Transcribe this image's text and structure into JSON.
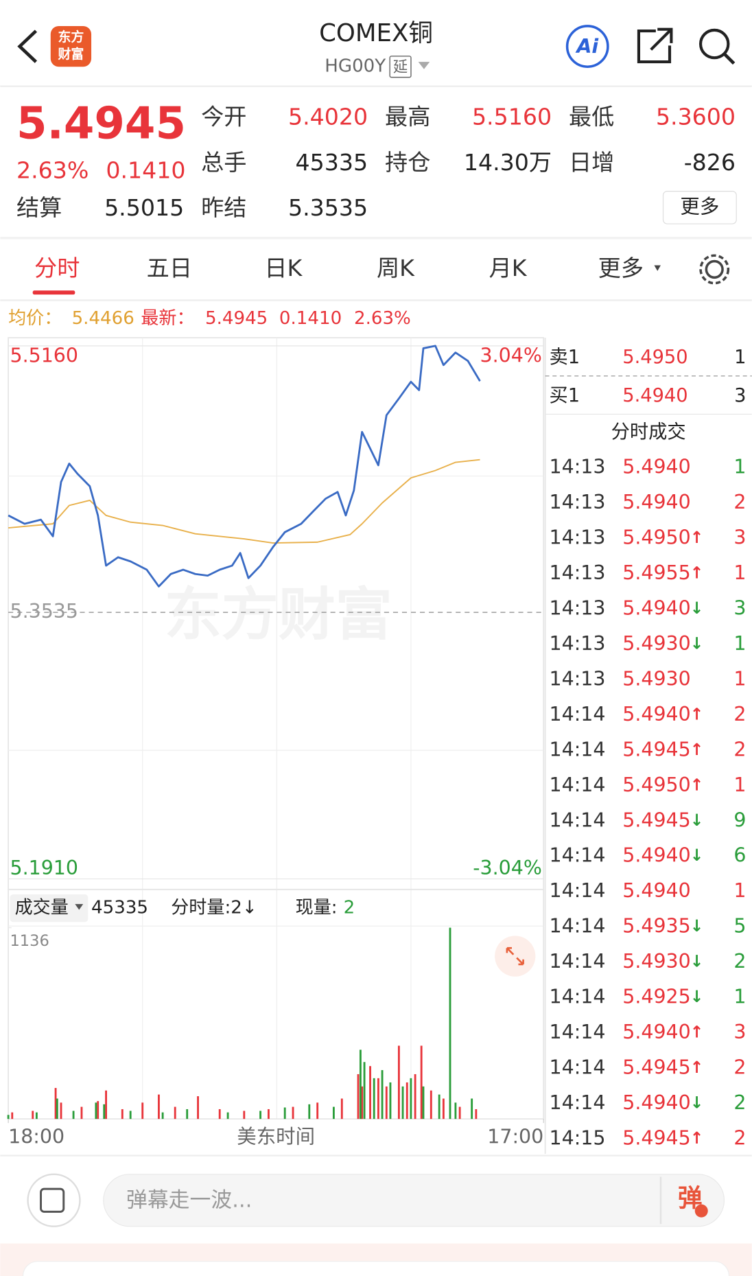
{
  "header": {
    "logo": "东方",
    "logo2": "财富",
    "title": "COMEX铜",
    "code": "HG00Y",
    "badge": "延",
    "ai": "Ai"
  },
  "quote": {
    "price": "5.4945",
    "change_pct": "2.63%",
    "change": "0.1410",
    "fields": [
      {
        "label": "今开",
        "value": "5.4020",
        "color": "#e8343a"
      },
      {
        "label": "最高",
        "value": "5.5160",
        "color": "#e8343a"
      },
      {
        "label": "最低",
        "value": "5.3600",
        "color": "#e8343a"
      },
      {
        "label": "总手",
        "value": "45335",
        "color": "#222222"
      },
      {
        "label": "持仓",
        "value": "14.30万",
        "color": "#222222"
      },
      {
        "label": "日增",
        "value": "-826",
        "color": "#222222"
      },
      {
        "label": "结算",
        "value": "5.5015",
        "color": "#222222"
      },
      {
        "label": "昨结",
        "value": "5.3535",
        "color": "#222222"
      }
    ],
    "more": "更多"
  },
  "tabs": [
    "分时",
    "五日",
    "日K",
    "周K",
    "月K",
    "更多"
  ],
  "legend": {
    "avg_label": "均价：",
    "avg": "5.4466",
    "latest_label": "最新：",
    "latest": "5.4945",
    "change": "0.1410",
    "change_pct": "2.63%"
  },
  "watermark": "东方财富",
  "chart_data": [
    {
      "type": "line",
      "xlim": [
        0,
        1380
      ],
      "xticks": [
        {
          "value": 0,
          "label": "18:00"
        },
        {
          "value": 1380,
          "label": "17:00"
        }
      ],
      "x_label": "美东时间",
      "ylim": [
        5.191,
        5.516
      ],
      "yticks": [
        {
          "value": 5.516,
          "label": "5.5160"
        },
        {
          "value": 5.3535,
          "label": "5.3535"
        },
        {
          "value": 5.191,
          "label": "5.1910"
        }
      ],
      "y2lim": [
        -3.04,
        3.04
      ],
      "y2ticks": [
        {
          "value": 3.04,
          "label": "3.04%"
        },
        {
          "value": -3.04,
          "label": "-3.04%"
        }
      ],
      "series": [
        {
          "color": "#3a6bc4",
          "x": [
            0,
            42,
            84,
            115,
            136,
            157,
            178,
            210,
            231,
            252,
            283,
            315,
            357,
            388,
            419,
            451,
            482,
            514,
            545,
            577,
            598,
            619,
            650,
            682,
            713,
            755,
            786,
            818,
            849,
            870,
            891,
            912,
            933,
            954,
            975,
            1007,
            1038,
            1059,
            1070,
            1101,
            1122,
            1153,
            1185,
            1216
          ],
          "values": [
            5.4126,
            5.4075,
            5.41,
            5.3999,
            5.433,
            5.4442,
            5.4381,
            5.4304,
            5.4126,
            5.382,
            5.3871,
            5.3846,
            5.3795,
            5.3693,
            5.3769,
            5.3795,
            5.3769,
            5.3759,
            5.3795,
            5.382,
            5.3897,
            5.3744,
            5.382,
            5.3932,
            5.4024,
            5.4075,
            5.4151,
            5.4228,
            5.4269,
            5.4126,
            5.4279,
            5.4635,
            5.4534,
            5.4432,
            5.4737,
            5.4839,
            5.4941,
            5.489,
            5.5145,
            5.516,
            5.5043,
            5.5119,
            5.5068,
            5.4945
          ]
        },
        {
          "color": "#e8b04a",
          "x": [
            0,
            115,
            157,
            210,
            252,
            315,
            398,
            482,
            608,
            682,
            797,
            881,
            912,
            964,
            1038,
            1101,
            1153,
            1216
          ],
          "values": [
            5.405,
            5.4075,
            5.4187,
            5.4218,
            5.4126,
            5.4085,
            5.4065,
            5.4014,
            5.3983,
            5.3958,
            5.3963,
            5.4009,
            5.4075,
            5.4202,
            5.4355,
            5.44,
            5.445,
            5.4466
          ]
        }
      ]
    },
    {
      "type": "bar",
      "label": "成交量",
      "total": "45335",
      "minute_label": "分时量:2↓",
      "current_label": "现量:",
      "current": "2",
      "xlim": [
        0,
        1380
      ],
      "ylim": [
        0,
        1136
      ],
      "yticks": [
        1136
      ],
      "series": [
        {
          "color": "#e8343a",
          "x": [
            10,
            63,
            122,
            136,
            189,
            231,
            252,
            294,
            346,
            388,
            430,
            489,
            545,
            608,
            671,
            734,
            797,
            860,
            902,
            912,
            933,
            954,
            975,
            1007,
            1028,
            1049,
            1065,
            1090,
            1122,
            1164,
            1206
          ],
          "values": [
            39,
            48,
            184,
            97,
            72,
            106,
            169,
            58,
            97,
            145,
            72,
            135,
            58,
            48,
            58,
            72,
            97,
            121,
            266,
            193,
            314,
            242,
            193,
            435,
            217,
            266,
            435,
            169,
            121,
            72,
            58
          ]
        },
        {
          "color": "#2a9d3a",
          "x": [
            0,
            73,
            126,
            168,
            226,
            247,
            315,
            398,
            461,
            566,
            650,
            713,
            776,
            839,
            908,
            918,
            943,
            964,
            985,
            1017,
            1038,
            1070,
            1111,
            1139,
            1153,
            1195
          ],
          "values": [
            24,
            39,
            121,
            48,
            97,
            87,
            48,
            39,
            58,
            39,
            48,
            68,
            87,
            72,
            411,
            338,
            242,
            290,
            217,
            193,
            242,
            193,
            145,
            1136,
            97,
            121
          ]
        }
      ]
    }
  ],
  "book": {
    "sell": {
      "label": "卖1",
      "price": "5.4950",
      "vol": "1"
    },
    "buy": {
      "label": "买1",
      "price": "5.4940",
      "vol": "3"
    },
    "title": "分时成交",
    "rows": [
      {
        "time": "14:13",
        "price": "5.4940",
        "vol": "1",
        "vol_color": "#2a9d3a"
      },
      {
        "time": "14:13",
        "price": "5.4940",
        "vol": "2",
        "vol_color": "#e8343a"
      },
      {
        "time": "14:13",
        "price": "5.4950",
        "arrow": "↑",
        "vol": "3",
        "vol_color": "#e8343a"
      },
      {
        "time": "14:13",
        "price": "5.4955",
        "arrow": "↑",
        "vol": "1",
        "vol_color": "#e8343a"
      },
      {
        "time": "14:13",
        "price": "5.4940",
        "arrow": "↓",
        "vol": "3",
        "vol_color": "#2a9d3a"
      },
      {
        "time": "14:13",
        "price": "5.4930",
        "arrow": "↓",
        "vol": "1",
        "vol_color": "#2a9d3a"
      },
      {
        "time": "14:13",
        "price": "5.4930",
        "vol": "1",
        "vol_color": "#e8343a"
      },
      {
        "time": "14:14",
        "price": "5.4940",
        "arrow": "↑",
        "vol": "2",
        "vol_color": "#e8343a"
      },
      {
        "time": "14:14",
        "price": "5.4945",
        "arrow": "↑",
        "vol": "2",
        "vol_color": "#e8343a"
      },
      {
        "time": "14:14",
        "price": "5.4950",
        "arrow": "↑",
        "vol": "1",
        "vol_color": "#e8343a"
      },
      {
        "time": "14:14",
        "price": "5.4945",
        "arrow": "↓",
        "vol": "9",
        "vol_color": "#2a9d3a"
      },
      {
        "time": "14:14",
        "price": "5.4940",
        "arrow": "↓",
        "vol": "6",
        "vol_color": "#2a9d3a"
      },
      {
        "time": "14:14",
        "price": "5.4940",
        "vol": "1",
        "vol_color": "#e8343a"
      },
      {
        "time": "14:14",
        "price": "5.4935",
        "arrow": "↓",
        "vol": "5",
        "vol_color": "#2a9d3a"
      },
      {
        "time": "14:14",
        "price": "5.4930",
        "arrow": "↓",
        "vol": "2",
        "vol_color": "#2a9d3a"
      },
      {
        "time": "14:14",
        "price": "5.4925",
        "arrow": "↓",
        "vol": "1",
        "vol_color": "#2a9d3a"
      },
      {
        "time": "14:14",
        "price": "5.4940",
        "arrow": "↑",
        "vol": "3",
        "vol_color": "#e8343a"
      },
      {
        "time": "14:14",
        "price": "5.4945",
        "arrow": "↑",
        "vol": "2",
        "vol_color": "#e8343a"
      },
      {
        "time": "14:14",
        "price": "5.4940",
        "arrow": "↓",
        "vol": "2",
        "vol_color": "#2a9d3a"
      },
      {
        "time": "14:15",
        "price": "5.4945",
        "arrow": "↑",
        "vol": "2",
        "vol_color": "#e8343a"
      }
    ]
  },
  "footer": {
    "placeholder": "弹幕走一波...",
    "button": "弹"
  }
}
